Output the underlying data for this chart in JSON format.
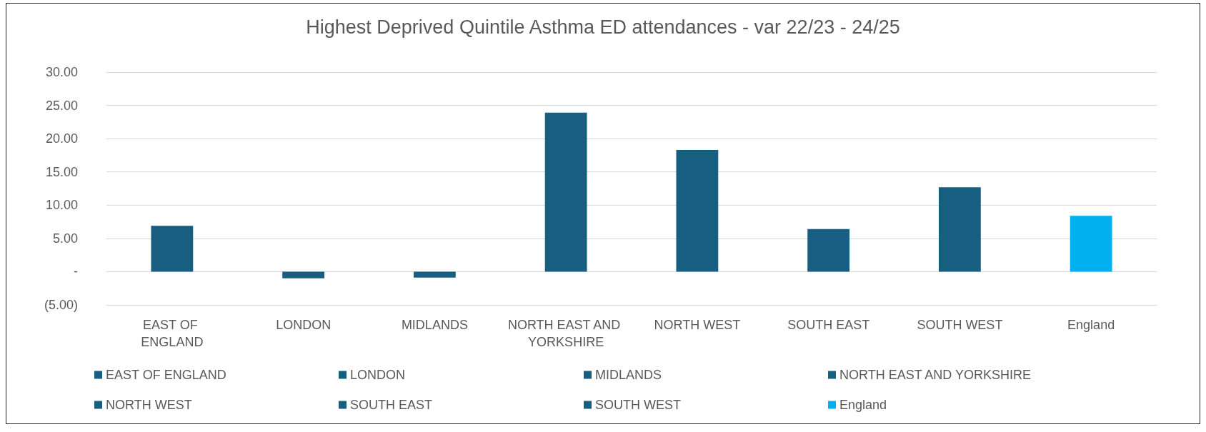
{
  "chart_data": {
    "type": "bar",
    "title": "Highest Deprived Quintile Asthma ED attendances - var 22/23 - 24/25",
    "categories": [
      "EAST OF ENGLAND",
      "LONDON",
      "MIDLANDS",
      "NORTH EAST AND YORKSHIRE",
      "NORTH WEST",
      "SOUTH EAST",
      "SOUTH WEST",
      "England"
    ],
    "series": [
      {
        "name": "EAST OF ENGLAND",
        "color": "#175e80",
        "values": [
          6.9,
          null,
          null,
          null,
          null,
          null,
          null,
          null
        ]
      },
      {
        "name": "LONDON",
        "color": "#175e80",
        "values": [
          null,
          -1.0,
          null,
          null,
          null,
          null,
          null,
          null
        ]
      },
      {
        "name": "MIDLANDS",
        "color": "#175e80",
        "values": [
          null,
          null,
          -0.9,
          null,
          null,
          null,
          null,
          null
        ]
      },
      {
        "name": "NORTH EAST AND YORKSHIRE",
        "color": "#175e80",
        "values": [
          null,
          null,
          null,
          23.9,
          null,
          null,
          null,
          null
        ]
      },
      {
        "name": "NORTH WEST",
        "color": "#175e80",
        "values": [
          null,
          null,
          null,
          null,
          18.3,
          null,
          null,
          null
        ]
      },
      {
        "name": "SOUTH EAST",
        "color": "#175e80",
        "values": [
          null,
          null,
          null,
          null,
          null,
          6.4,
          null,
          null
        ]
      },
      {
        "name": "SOUTH WEST",
        "color": "#175e80",
        "values": [
          null,
          null,
          null,
          null,
          null,
          null,
          12.7,
          null
        ]
      },
      {
        "name": "England",
        "color": "#00b0f0",
        "values": [
          null,
          null,
          null,
          null,
          null,
          null,
          null,
          8.4
        ]
      }
    ],
    "ylim": [
      -5,
      30
    ],
    "yticks": [
      {
        "value": -5,
        "label": "(5.00)"
      },
      {
        "value": 0,
        "label": "-"
      },
      {
        "value": 5,
        "label": "5.00"
      },
      {
        "value": 10,
        "label": "10.00"
      },
      {
        "value": 15,
        "label": "15.00"
      },
      {
        "value": 20,
        "label": "20.00"
      },
      {
        "value": 25,
        "label": "25.00"
      },
      {
        "value": 30,
        "label": "30.00"
      }
    ],
    "grid": "y",
    "legend": "bottom"
  }
}
